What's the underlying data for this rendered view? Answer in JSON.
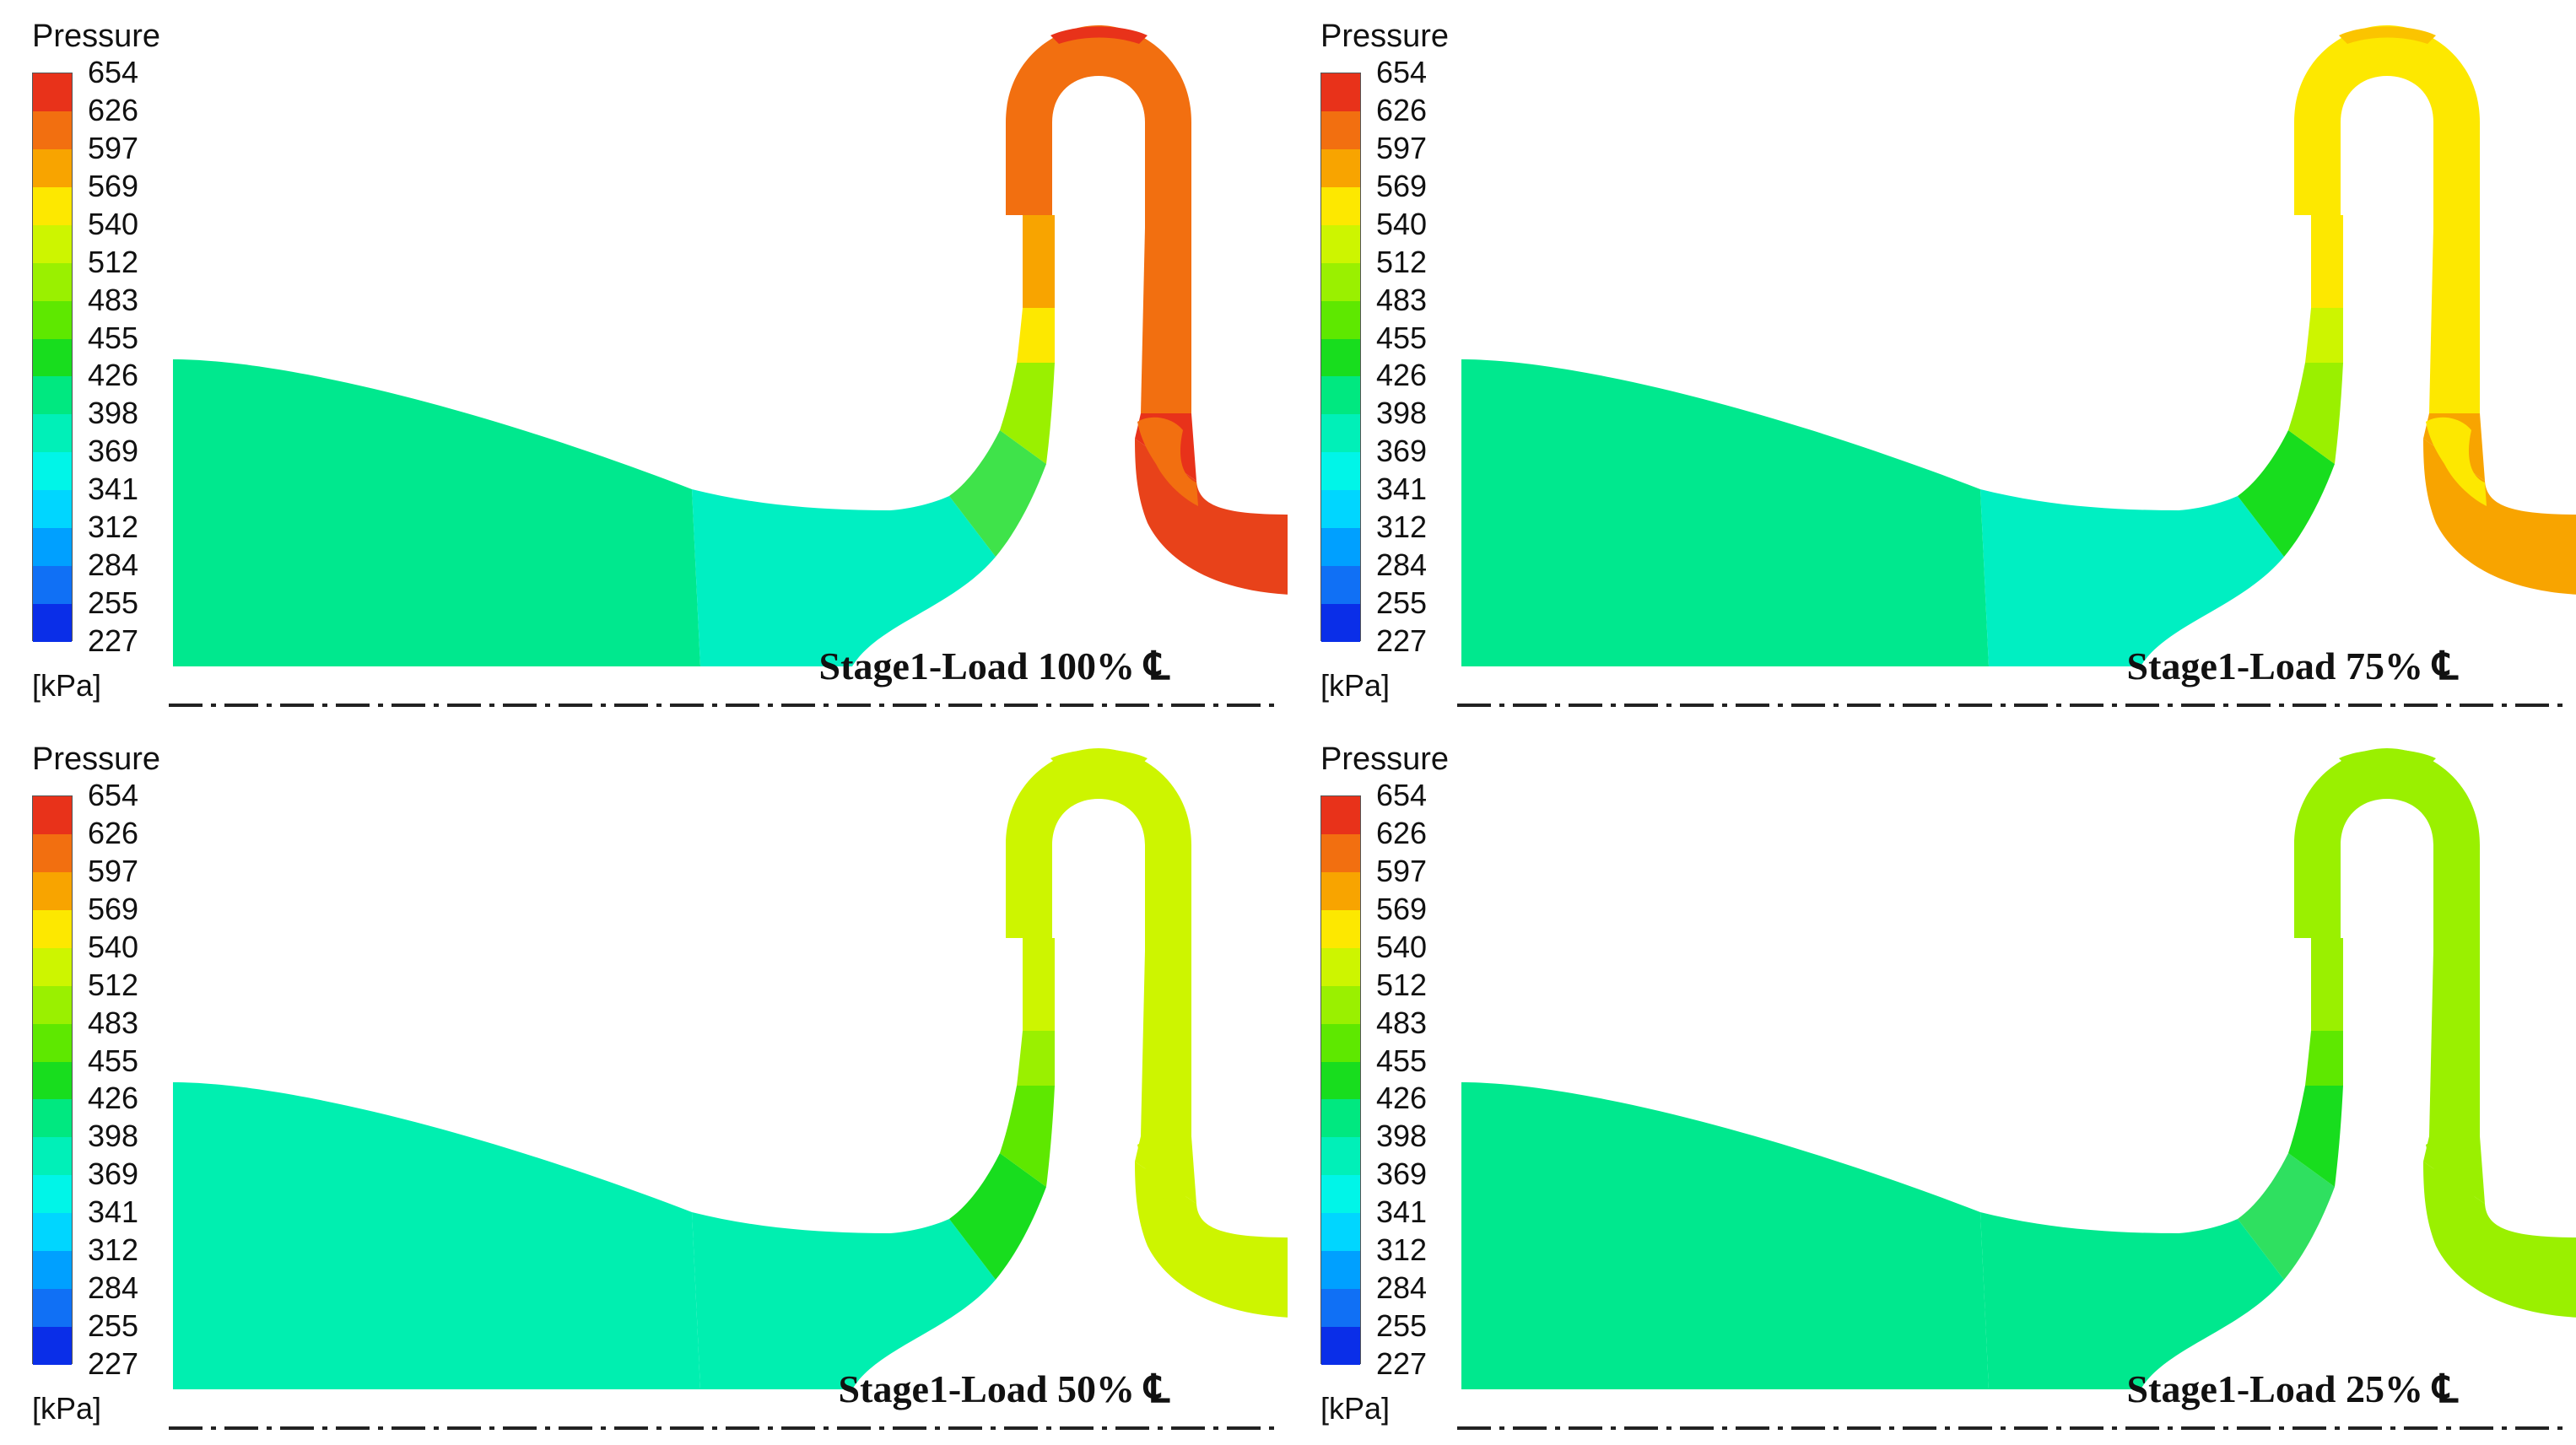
{
  "figure": {
    "legend": {
      "title": "Pressure",
      "unit": "[kPa]",
      "ticks": [
        "654",
        "626",
        "597",
        "569",
        "540",
        "512",
        "483",
        "455",
        "426",
        "398",
        "369",
        "341",
        "312",
        "284",
        "255",
        "227"
      ],
      "band_colors": [
        "#e8321a",
        "#f26f10",
        "#f8a400",
        "#fde800",
        "#cdf500",
        "#9af000",
        "#5ee800",
        "#18dd1e",
        "#00e880",
        "#00f0b8",
        "#00f5e8",
        "#00d6ff",
        "#00a0ff",
        "#1070f5",
        "#0a2ee8"
      ],
      "min_value": 227,
      "max_value": 654
    },
    "centerline_symbol": "℄",
    "panels": [
      {
        "label": "Stage1-Load 100%",
        "regions": {
          "inlet": "#00e88e",
          "throat": "#00efc2",
          "bend_lower": "#3fe34a",
          "bend_mid": "#9af000",
          "bend_upper": "#fde800",
          "up_leg_upper": "#f8a400",
          "top_arc": "#f26f10",
          "top_cap": "#e8321a",
          "down_leg_upper": "#f26f10",
          "down_leg_lower": "#e8321a",
          "tail": "#e8421a",
          "tail_inner": "#f26f10"
        }
      },
      {
        "label": "Stage1-Load 75%",
        "regions": {
          "inlet": "#00e88e",
          "throat": "#00efc2",
          "bend_lower": "#18dd1e",
          "bend_mid": "#9af000",
          "bend_upper": "#cdf500",
          "up_leg_upper": "#fde800",
          "top_arc": "#fde800",
          "top_cap": "#fbc400",
          "down_leg_upper": "#fde800",
          "down_leg_lower": "#f8a400",
          "tail": "#f8a400",
          "tail_inner": "#fde800"
        }
      },
      {
        "label": "Stage1-Load 50%",
        "regions": {
          "inlet": "#00efb0",
          "throat": "#00efb0",
          "bend_lower": "#18dd1e",
          "bend_mid": "#5ee800",
          "bend_upper": "#9af000",
          "up_leg_upper": "#cdf500",
          "top_arc": "#cdf500",
          "top_cap": "#cdf500",
          "down_leg_upper": "#cdf500",
          "down_leg_lower": "#cdf500",
          "tail": "#cdf500",
          "tail_inner": "#cdf500"
        }
      },
      {
        "label": "Stage1-Load 25%",
        "regions": {
          "inlet": "#00e88e",
          "throat": "#00e88e",
          "bend_lower": "#2fe060",
          "bend_mid": "#18dd1e",
          "bend_upper": "#5ee800",
          "up_leg_upper": "#9af000",
          "top_arc": "#9af000",
          "top_cap": "#9af000",
          "down_leg_upper": "#9af000",
          "down_leg_lower": "#9af000",
          "tail": "#9af000",
          "tail_inner": "#9af000"
        }
      }
    ]
  }
}
